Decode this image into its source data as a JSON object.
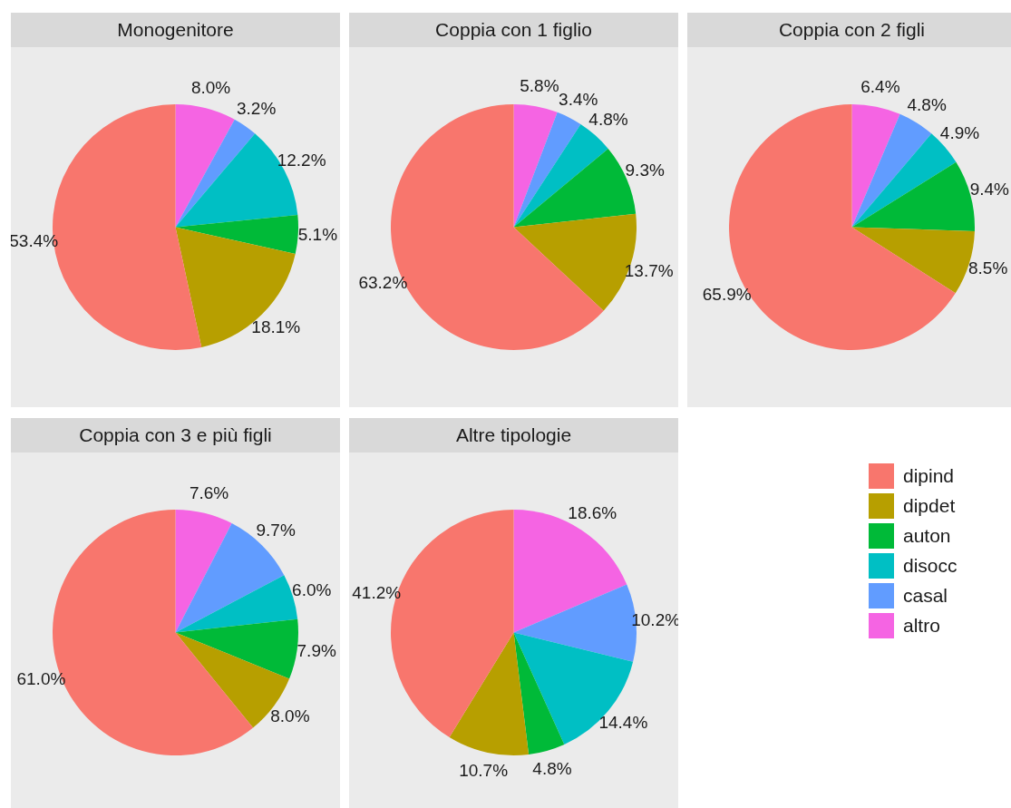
{
  "chart_data": [
    {
      "type": "pie",
      "title": "Monogenitore",
      "categories": [
        "dipind",
        "dipdet",
        "auton",
        "disocc",
        "casal",
        "altro"
      ],
      "values": [
        53.4,
        18.1,
        5.1,
        12.2,
        3.2,
        8.0
      ],
      "colors": [
        "#f8766d",
        "#b79f00",
        "#00ba38",
        "#00bfc4",
        "#619cff",
        "#f564e3"
      ],
      "value_labels": [
        "53.4%",
        "18.1%",
        "5.1%",
        "12.2%",
        "3.2%",
        "8.0%"
      ],
      "legend": "right"
    },
    {
      "type": "pie",
      "title": "Coppia con 1 figlio",
      "categories": [
        null,
        null,
        null,
        null,
        null,
        null
      ],
      "values": [
        63.2,
        13.7,
        9.3,
        4.8,
        3.4,
        5.8
      ],
      "colors": [
        "#f8766d",
        "#b79f00",
        "#00ba38",
        "#00bfc4",
        "#619cff",
        "#f564e3"
      ],
      "value_labels": [
        "63.2%",
        "13.7%",
        "9.3%",
        "4.8%",
        "3.4%",
        "5.8%"
      ]
    },
    {
      "type": "pie",
      "title": "Coppia con 2 figli",
      "categories": [
        null,
        null,
        null,
        null,
        null,
        null
      ],
      "values": [
        65.9,
        8.5,
        9.4,
        4.9,
        4.8,
        6.4
      ],
      "colors": [
        "#f8766d",
        "#b79f00",
        "#00ba38",
        "#00bfc4",
        "#619cff",
        "#f564e3"
      ],
      "value_labels": [
        "65.9%",
        "8.5%",
        "9.4%",
        "4.9%",
        "4.8%",
        "6.4%"
      ]
    },
    {
      "type": "pie",
      "title": "Coppia con 3 e più figli",
      "categories": [
        null,
        null,
        null,
        null,
        null,
        null
      ],
      "values": [
        61.0,
        8.0,
        7.9,
        6.0,
        9.7,
        7.6
      ],
      "colors": [
        "#f8766d",
        "#b79f00",
        "#00ba38",
        "#00bfc4",
        "#619cff",
        "#f564e3"
      ],
      "value_labels": [
        "61.0%",
        "8.0%",
        "7.9%",
        "6.0%",
        "9.7%",
        "7.6%"
      ]
    },
    {
      "type": "pie",
      "title": "Altre tipologie",
      "categories": [
        null,
        null,
        null,
        null,
        null,
        null
      ],
      "values": [
        41.2,
        10.7,
        4.8,
        14.4,
        10.2,
        18.6
      ],
      "colors": [
        "#f8766d",
        "#b79f00",
        "#00ba38",
        "#00bfc4",
        "#619cff",
        "#f564e3"
      ],
      "value_labels": [
        "41.2%",
        "10.7%",
        "4.8%",
        "14.4%",
        "10.2%",
        "18.6%"
      ]
    }
  ]
}
